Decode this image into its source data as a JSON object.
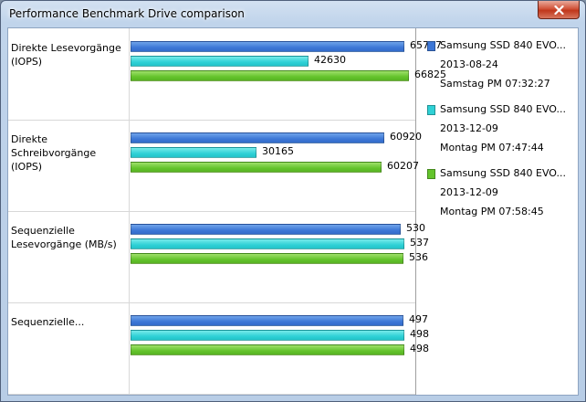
{
  "window": {
    "title": "Performance Benchmark Drive comparison"
  },
  "colors": {
    "series0": "#3d77d6",
    "series1": "#2fd1d6",
    "series2": "#64c42c"
  },
  "icons": {
    "close": "close-icon"
  },
  "chart_data": {
    "type": "bar",
    "orientation": "horizontal",
    "categories": [
      "Direkte Lesevorgänge (IOPS)",
      "Direkte Schreibvorgänge (IOPS)",
      "Sequenzielle Lesevorgänge (MB/s)",
      "Sequenzielle..."
    ],
    "series": [
      {
        "name": "Samsung SSD 840 EVO...",
        "values": [
          65717,
          60920,
          530,
          497
        ]
      },
      {
        "name": "Samsung SSD 840 EVO...",
        "values": [
          42630,
          30165,
          537,
          498
        ]
      },
      {
        "name": "Samsung SSD 840 EVO...",
        "values": [
          66825,
          60207,
          536,
          498
        ]
      }
    ],
    "grid": true,
    "legend": "right"
  },
  "legend": [
    {
      "name": "Samsung SSD 840 EVO...",
      "date": "2013-08-24",
      "time": "Samstag PM 07:32:27"
    },
    {
      "name": "Samsung SSD 840 EVO...",
      "date": "2013-12-09",
      "time": "Montag PM 07:47:44"
    },
    {
      "name": "Samsung SSD 840 EVO...",
      "date": "2013-12-09",
      "time": "Montag PM 07:58:45"
    }
  ]
}
